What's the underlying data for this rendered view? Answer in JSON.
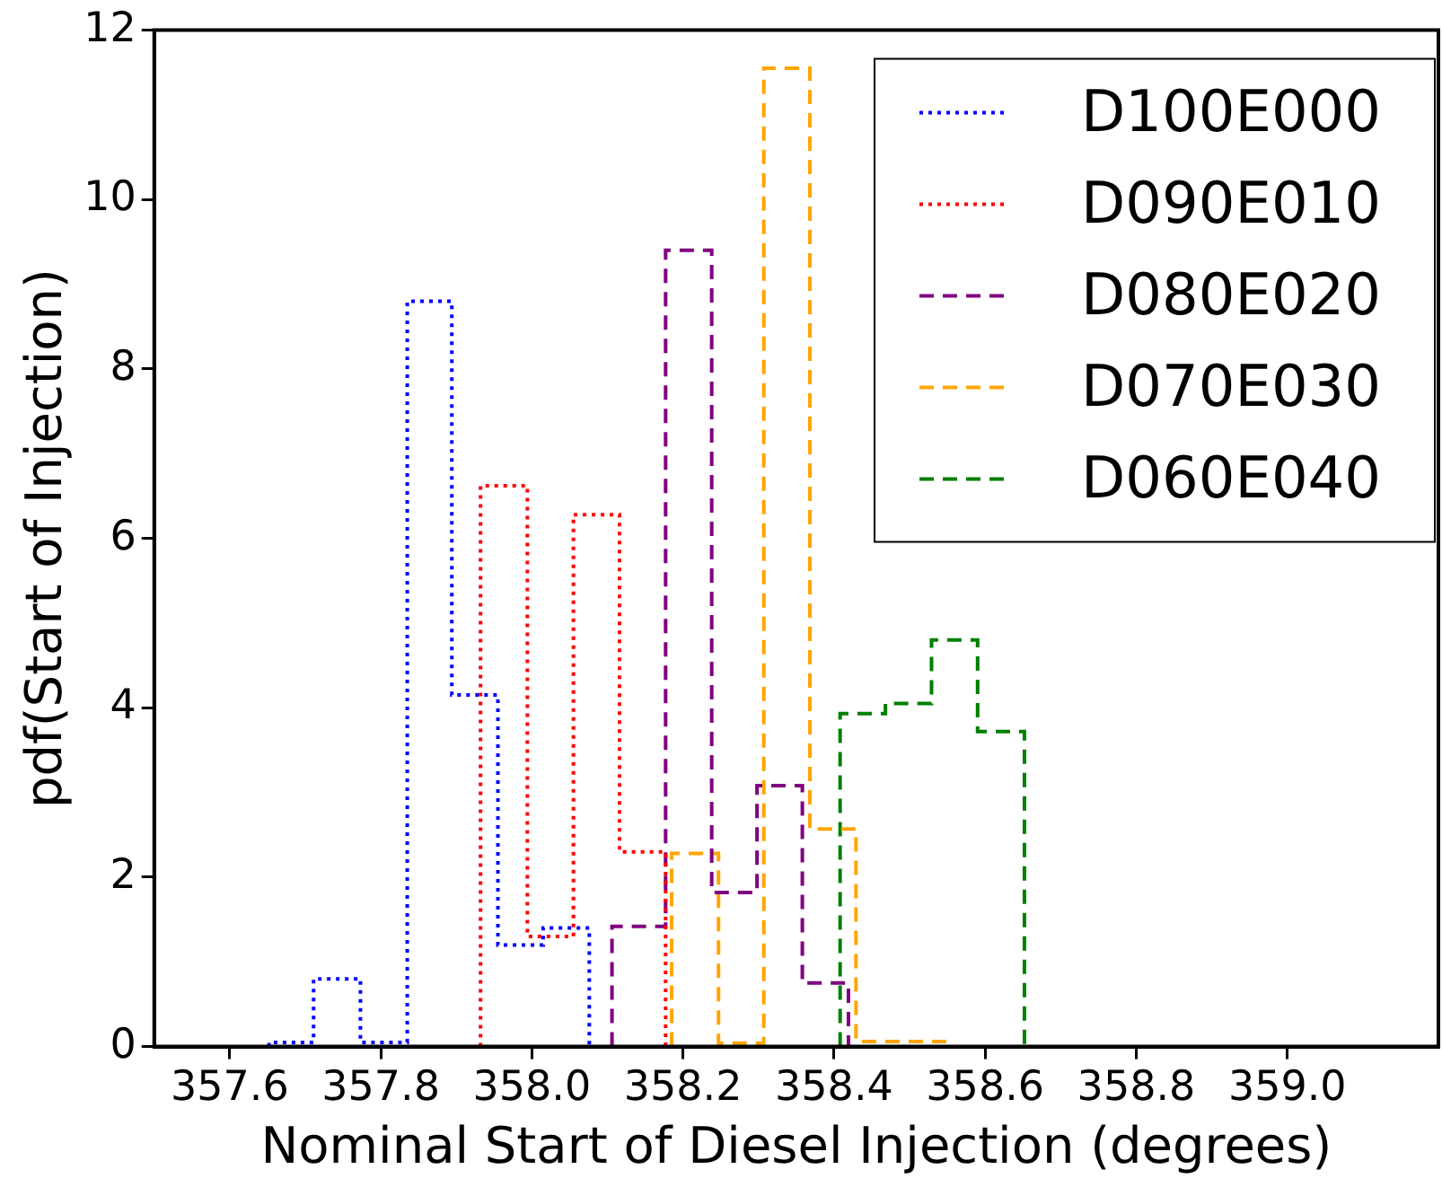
{
  "chart_data": {
    "type": "step",
    "xlabel": "Nominal Start of Diesel Injection (degrees)",
    "ylabel": "pdf(Start of Injection)",
    "xlim": [
      357.5,
      359.2
    ],
    "xticks": [
      357.6,
      357.8,
      {
        "value": 358,
        "label": "358.0"
      },
      358.2,
      358.4,
      358.6,
      358.8,
      {
        "value": 359,
        "label": "359.0"
      }
    ],
    "ylim": [
      0,
      12
    ],
    "yticks": [
      0,
      2,
      4,
      6,
      8,
      10,
      12
    ],
    "grid": false,
    "legend": "top right",
    "series": [
      {
        "name": "D100E000",
        "color": "#0000ff",
        "line_style": "dotted",
        "x": [
          357.652,
          357.652,
          357.711,
          357.773,
          357.835,
          357.894,
          357.955,
          358.015,
          358.076,
          358.076
        ],
        "values": [
          0,
          0.05,
          0.8,
          0.05,
          8.8,
          4.15,
          1.2,
          1.4,
          1.4,
          0
        ]
      },
      {
        "name": "D090E010",
        "color": "#ff0000",
        "line_style": "dotted",
        "x": [
          357.932,
          357.932,
          357.994,
          358.055,
          358.116,
          358.177,
          358.177
        ],
        "values": [
          0,
          6.62,
          1.3,
          6.28,
          2.3,
          2.3,
          0
        ]
      },
      {
        "name": "D080E020",
        "color": "#800080",
        "line_style": "dashed",
        "x": [
          358.106,
          358.106,
          358.177,
          358.238,
          358.298,
          358.358,
          358.419,
          358.419
        ],
        "values": [
          0,
          1.42,
          9.4,
          1.82,
          3.08,
          0.75,
          0.75,
          0
        ]
      },
      {
        "name": "D070E030",
        "color": "#ffa500",
        "line_style": "dashed",
        "x": [
          358.185,
          358.185,
          358.247,
          358.307,
          358.368,
          358.429,
          358.49,
          358.552,
          358.552
        ],
        "values": [
          0,
          2.28,
          0.04,
          11.55,
          2.57,
          0.06,
          0.06,
          0.06,
          0
        ]
      },
      {
        "name": "D060E040",
        "color": "#008000",
        "line_style": "dashed",
        "x": [
          358.408,
          358.408,
          358.468,
          358.529,
          358.59,
          358.652,
          358.652
        ],
        "values": [
          0,
          3.93,
          4.05,
          4.8,
          3.72,
          3.72,
          0
        ]
      }
    ]
  }
}
